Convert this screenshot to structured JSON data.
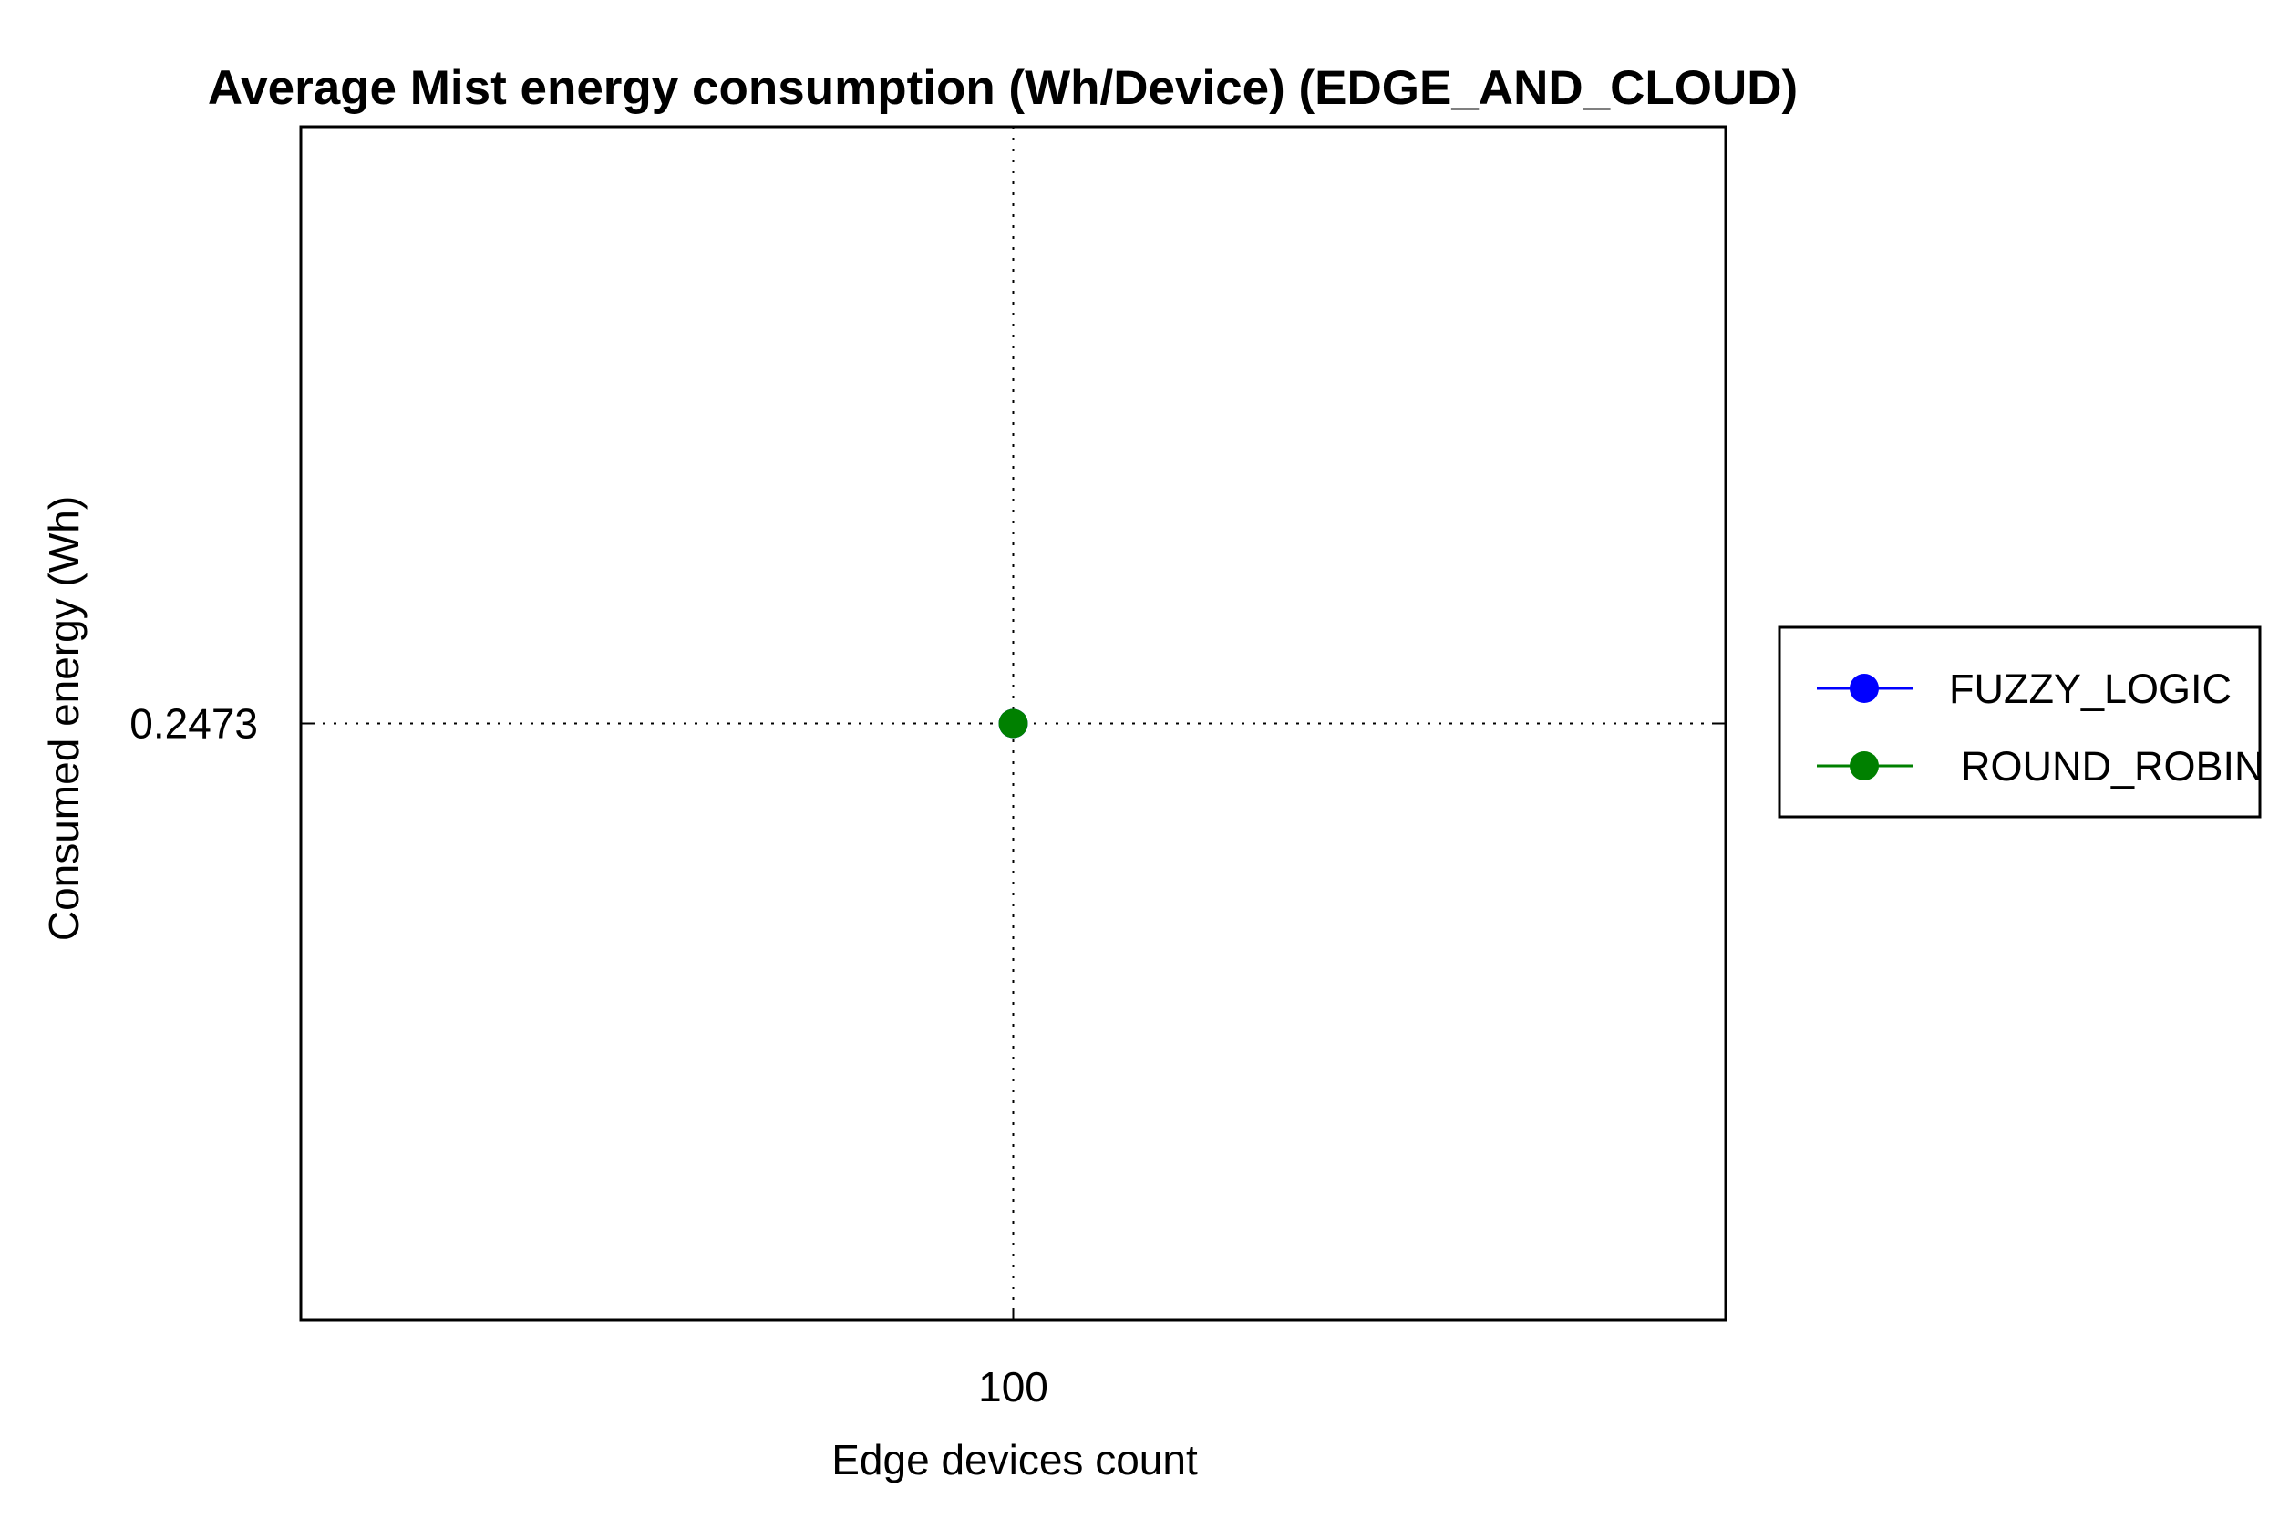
{
  "chart_data": {
    "type": "line",
    "title": "Average Mist energy consumption (Wh/Device) (EDGE_AND_CLOUD)",
    "xlabel": "Edge devices count",
    "ylabel": "Consumed energy (Wh)",
    "x": [
      100
    ],
    "x_tick_labels": [
      "100"
    ],
    "y_tick_values": [
      0.2473
    ],
    "y_tick_labels": [
      "0.2473"
    ],
    "ylim": [
      0.2472,
      0.2474
    ],
    "series": [
      {
        "name": "FUZZY_LOGIC",
        "color": "#0000ff",
        "values": [
          0.2473
        ]
      },
      {
        "name": "ROUND_ROBIN",
        "color": "#008000",
        "values": [
          0.2473
        ]
      }
    ],
    "grid": true,
    "grid_style": "dotted",
    "legend_position": "right",
    "marker": "circle"
  }
}
